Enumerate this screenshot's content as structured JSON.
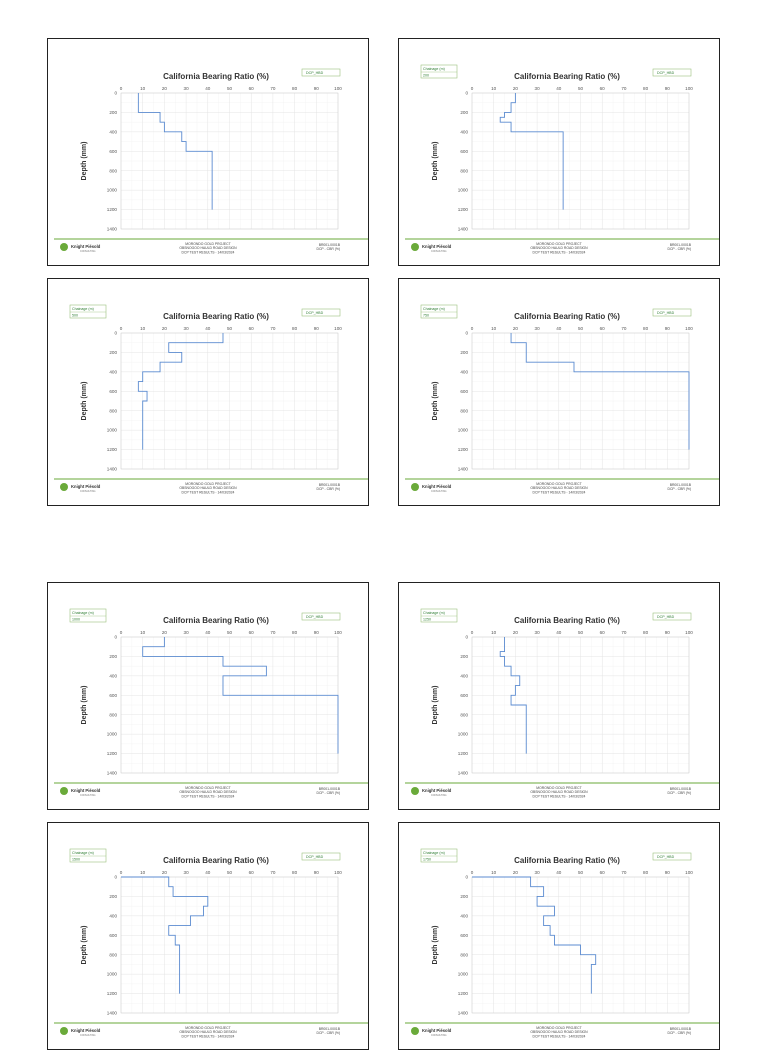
{
  "common": {
    "title": "California Bearing Ratio (%)",
    "ylabel": "Depth (mm)",
    "legend_label": "DCP_HBD",
    "chainage_label": "Chainage (m)",
    "footer_center": [
      "MORONDO GOLD PROJECT",
      "OBSNOGOO HAULD ROAD DESIGN",
      "DCP TEST RESULTS - 14/03/2024"
    ],
    "footer_right": [
      "BR001-0001B",
      "DCP - CBR (%)"
    ],
    "logo_text": "Knight Piésold",
    "logo_sub": "CONSULTING",
    "colors": {
      "line": "#5b8bd0",
      "accent": "#6aaa3a",
      "grid": "#e4e4e4"
    }
  },
  "chart_data": [
    {
      "type": "line",
      "title": "California Bearing Ratio (%)",
      "ylabel": "Depth (mm)",
      "chainage": "",
      "xlim": [
        0,
        100
      ],
      "ylim": [
        0,
        1400
      ],
      "y_inverted": true,
      "xticks": [
        0,
        10,
        20,
        30,
        40,
        50,
        60,
        70,
        80,
        90,
        100
      ],
      "yticks": [
        0,
        200,
        400,
        600,
        800,
        1000,
        1200,
        1400
      ],
      "cbr": [
        8,
        8,
        18,
        18,
        20,
        20,
        28,
        28,
        30,
        30,
        42,
        42
      ],
      "depth": [
        0,
        200,
        200,
        300,
        300,
        400,
        400,
        500,
        500,
        600,
        600,
        1200
      ],
      "legend": "DCP_HBD"
    },
    {
      "type": "line",
      "title": "California Bearing Ratio (%)",
      "ylabel": "Depth (mm)",
      "chainage": "200",
      "xlim": [
        0,
        100
      ],
      "ylim": [
        0,
        1400
      ],
      "y_inverted": true,
      "xticks": [
        0,
        10,
        20,
        30,
        40,
        50,
        60,
        70,
        80,
        90,
        100
      ],
      "yticks": [
        0,
        200,
        400,
        600,
        800,
        1000,
        1200,
        1400
      ],
      "cbr": [
        20,
        20,
        18,
        18,
        15,
        15,
        13,
        13,
        18,
        18,
        42,
        42
      ],
      "depth": [
        0,
        100,
        100,
        200,
        200,
        250,
        250,
        300,
        300,
        400,
        400,
        1200
      ],
      "legend": "DCP_HBD"
    },
    {
      "type": "line",
      "title": "California Bearing Ratio (%)",
      "ylabel": "Depth (mm)",
      "chainage": "500",
      "xlim": [
        0,
        100
      ],
      "ylim": [
        0,
        1400
      ],
      "y_inverted": true,
      "xticks": [
        0,
        10,
        20,
        30,
        40,
        50,
        60,
        70,
        80,
        90,
        100
      ],
      "yticks": [
        0,
        200,
        400,
        600,
        800,
        1000,
        1200,
        1400
      ],
      "cbr": [
        47,
        47,
        22,
        22,
        28,
        28,
        18,
        18,
        10,
        10,
        8,
        8,
        12,
        12,
        10,
        10
      ],
      "depth": [
        0,
        100,
        100,
        200,
        200,
        300,
        300,
        400,
        400,
        500,
        500,
        600,
        600,
        700,
        700,
        1200
      ],
      "legend": "DCP_HBD"
    },
    {
      "type": "line",
      "title": "California Bearing Ratio (%)",
      "ylabel": "Depth (mm)",
      "chainage": "750",
      "xlim": [
        0,
        100
      ],
      "ylim": [
        0,
        1400
      ],
      "y_inverted": true,
      "xticks": [
        0,
        10,
        20,
        30,
        40,
        50,
        60,
        70,
        80,
        90,
        100
      ],
      "yticks": [
        0,
        200,
        400,
        600,
        800,
        1000,
        1200,
        1400
      ],
      "cbr": [
        18,
        18,
        25,
        25,
        47,
        47,
        100,
        100
      ],
      "depth": [
        0,
        100,
        100,
        300,
        300,
        400,
        400,
        1200
      ],
      "legend": "DCP_HBD"
    },
    {
      "type": "line",
      "title": "California Bearing Ratio (%)",
      "ylabel": "Depth (mm)",
      "chainage": "1000",
      "xlim": [
        0,
        100
      ],
      "ylim": [
        0,
        1400
      ],
      "y_inverted": true,
      "xticks": [
        0,
        10,
        20,
        30,
        40,
        50,
        60,
        70,
        80,
        90,
        100
      ],
      "yticks": [
        0,
        200,
        400,
        600,
        800,
        1000,
        1200,
        1400
      ],
      "cbr": [
        20,
        20,
        10,
        10,
        47,
        47,
        67,
        67,
        47,
        47,
        100,
        100
      ],
      "depth": [
        0,
        100,
        100,
        200,
        200,
        300,
        300,
        400,
        400,
        600,
        600,
        1200
      ],
      "legend": "DCP_HBD"
    },
    {
      "type": "line",
      "title": "California Bearing Ratio (%)",
      "ylabel": "Depth (mm)",
      "chainage": "1250",
      "xlim": [
        0,
        100
      ],
      "ylim": [
        0,
        1400
      ],
      "y_inverted": true,
      "xticks": [
        0,
        10,
        20,
        30,
        40,
        50,
        60,
        70,
        80,
        90,
        100
      ],
      "yticks": [
        0,
        200,
        400,
        600,
        800,
        1000,
        1200,
        1400
      ],
      "cbr": [
        15,
        15,
        13,
        13,
        15,
        15,
        18,
        18,
        22,
        22,
        20,
        20,
        18,
        18,
        25,
        25
      ],
      "depth": [
        0,
        150,
        150,
        200,
        200,
        300,
        300,
        400,
        400,
        500,
        500,
        600,
        600,
        700,
        700,
        1200
      ],
      "legend": "DCP_HBD"
    },
    {
      "type": "line",
      "title": "California Bearing Ratio (%)",
      "ylabel": "Depth (mm)",
      "chainage": "1500",
      "xlim": [
        0,
        100
      ],
      "ylim": [
        0,
        1400
      ],
      "y_inverted": true,
      "xticks": [
        0,
        10,
        20,
        30,
        40,
        50,
        60,
        70,
        80,
        90,
        100
      ],
      "yticks": [
        0,
        200,
        400,
        600,
        800,
        1000,
        1200,
        1400
      ],
      "cbr": [
        0,
        22,
        22,
        24,
        24,
        40,
        40,
        38,
        38,
        32,
        32,
        22,
        22,
        25,
        25,
        27,
        27
      ],
      "depth": [
        0,
        0,
        100,
        100,
        200,
        200,
        300,
        300,
        400,
        400,
        500,
        500,
        600,
        600,
        700,
        700,
        1200
      ],
      "legend": "DCP_HBD"
    },
    {
      "type": "line",
      "title": "California Bearing Ratio (%)",
      "ylabel": "Depth (mm)",
      "chainage": "1750",
      "xlim": [
        0,
        100
      ],
      "ylim": [
        0,
        1400
      ],
      "y_inverted": true,
      "xticks": [
        0,
        10,
        20,
        30,
        40,
        50,
        60,
        70,
        80,
        90,
        100
      ],
      "yticks": [
        0,
        200,
        400,
        600,
        800,
        1000,
        1200,
        1400
      ],
      "cbr": [
        0,
        27,
        27,
        33,
        33,
        30,
        30,
        38,
        38,
        33,
        33,
        36,
        36,
        38,
        38,
        50,
        50,
        57,
        57,
        55,
        55
      ],
      "depth": [
        0,
        0,
        100,
        100,
        200,
        200,
        300,
        300,
        400,
        400,
        500,
        500,
        600,
        600,
        700,
        700,
        800,
        800,
        900,
        900,
        1200
      ],
      "legend": "DCP_HBD"
    }
  ]
}
